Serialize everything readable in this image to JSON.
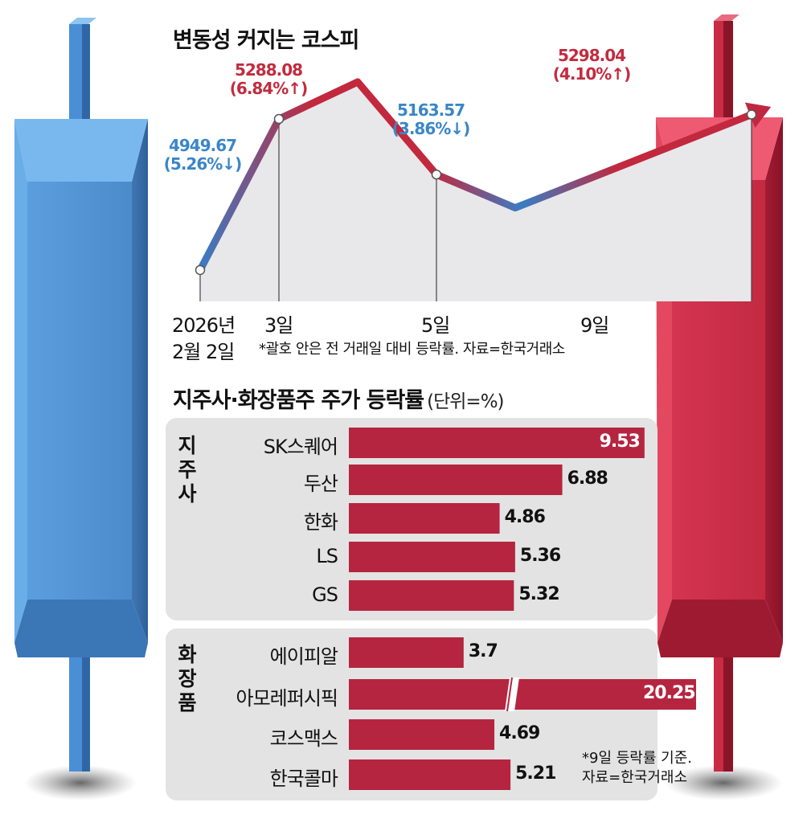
{
  "colors": {
    "up": "#c0283f",
    "down": "#3a86c8",
    "bar": "#b52540",
    "panel": "#e3e3e3",
    "area": "#e8e8ea"
  },
  "line_chart": {
    "title": "변동성 커지는 코스피",
    "note": "*괄호 안은 전 거래일 대비 등락률. 자료=한국거래소",
    "x_tick_labels": [
      "2026년",
      "2월 2일",
      "3일",
      "5일",
      "9일"
    ],
    "annotations": [
      {
        "value": "4949.67",
        "change": "(5.26%↓)",
        "direction": "down"
      },
      {
        "value": "5288.08",
        "change": "(6.84%↑)",
        "direction": "up"
      },
      {
        "value": "5163.57",
        "change": "(3.86%↓)",
        "direction": "down"
      },
      {
        "value": "5298.04",
        "change": "(4.10%↑)",
        "direction": "up"
      }
    ]
  },
  "bar_chart": {
    "title": "지주사·화장품주 주가 등락률",
    "unit": "(단위=%)",
    "note_line1": "*9일 등락률 기준.",
    "note_line2": "자료=한국거래소",
    "groups": [
      {
        "name": "지주사",
        "items": [
          {
            "label": "SK스퀘어",
            "value": 9.53,
            "text": "9.53"
          },
          {
            "label": "두산",
            "value": 6.88,
            "text": "6.88"
          },
          {
            "label": "한화",
            "value": 4.86,
            "text": "4.86"
          },
          {
            "label": "LS",
            "value": 5.36,
            "text": "5.36"
          },
          {
            "label": "GS",
            "value": 5.32,
            "text": "5.32"
          }
        ]
      },
      {
        "name": "화장품",
        "items": [
          {
            "label": "에이피알",
            "value": 3.7,
            "text": "3.7"
          },
          {
            "label": "아모레퍼시픽",
            "value": 20.25,
            "text": "20.25",
            "axis_break": true
          },
          {
            "label": "코스맥스",
            "value": 4.69,
            "text": "4.69"
          },
          {
            "label": "한국콜마",
            "value": 5.21,
            "text": "5.21"
          }
        ]
      }
    ]
  },
  "chart_data": [
    {
      "type": "line",
      "title": "변동성 커지는 코스피",
      "xlabel": "",
      "ylabel": "",
      "x": [
        "2026-02-02",
        "2026-02-03",
        "2026-02-04",
        "2026-02-05",
        "2026-02-06",
        "2026-02-09"
      ],
      "series": [
        {
          "values": [
            4949.67,
            5288.08,
            5371,
            5163.57,
            5089,
            5298.04
          ]
        }
      ],
      "labeled_points": [
        {
          "x": "2026-02-02",
          "y": 4949.67,
          "change_pct": -5.26
        },
        {
          "x": "2026-02-03",
          "y": 5288.08,
          "change_pct": 6.84
        },
        {
          "x": "2026-02-05",
          "y": 5163.57,
          "change_pct": -3.86
        },
        {
          "x": "2026-02-09",
          "y": 5298.04,
          "change_pct": 4.1
        }
      ],
      "grid": false
    },
    {
      "type": "bar",
      "orientation": "horizontal",
      "title": "지주사·화장품주 주가 등락률",
      "unit": "%",
      "categories": [
        "SK스퀘어",
        "두산",
        "한화",
        "LS",
        "GS",
        "에이피알",
        "아모레퍼시픽",
        "코스맥스",
        "한국콜마"
      ],
      "values": [
        9.53,
        6.88,
        4.86,
        5.36,
        5.32,
        3.7,
        20.25,
        4.69,
        5.21
      ],
      "groups": [
        "지주사",
        "화장품"
      ],
      "axis_break": [
        "아모레퍼시픽"
      ],
      "grid": false
    }
  ]
}
